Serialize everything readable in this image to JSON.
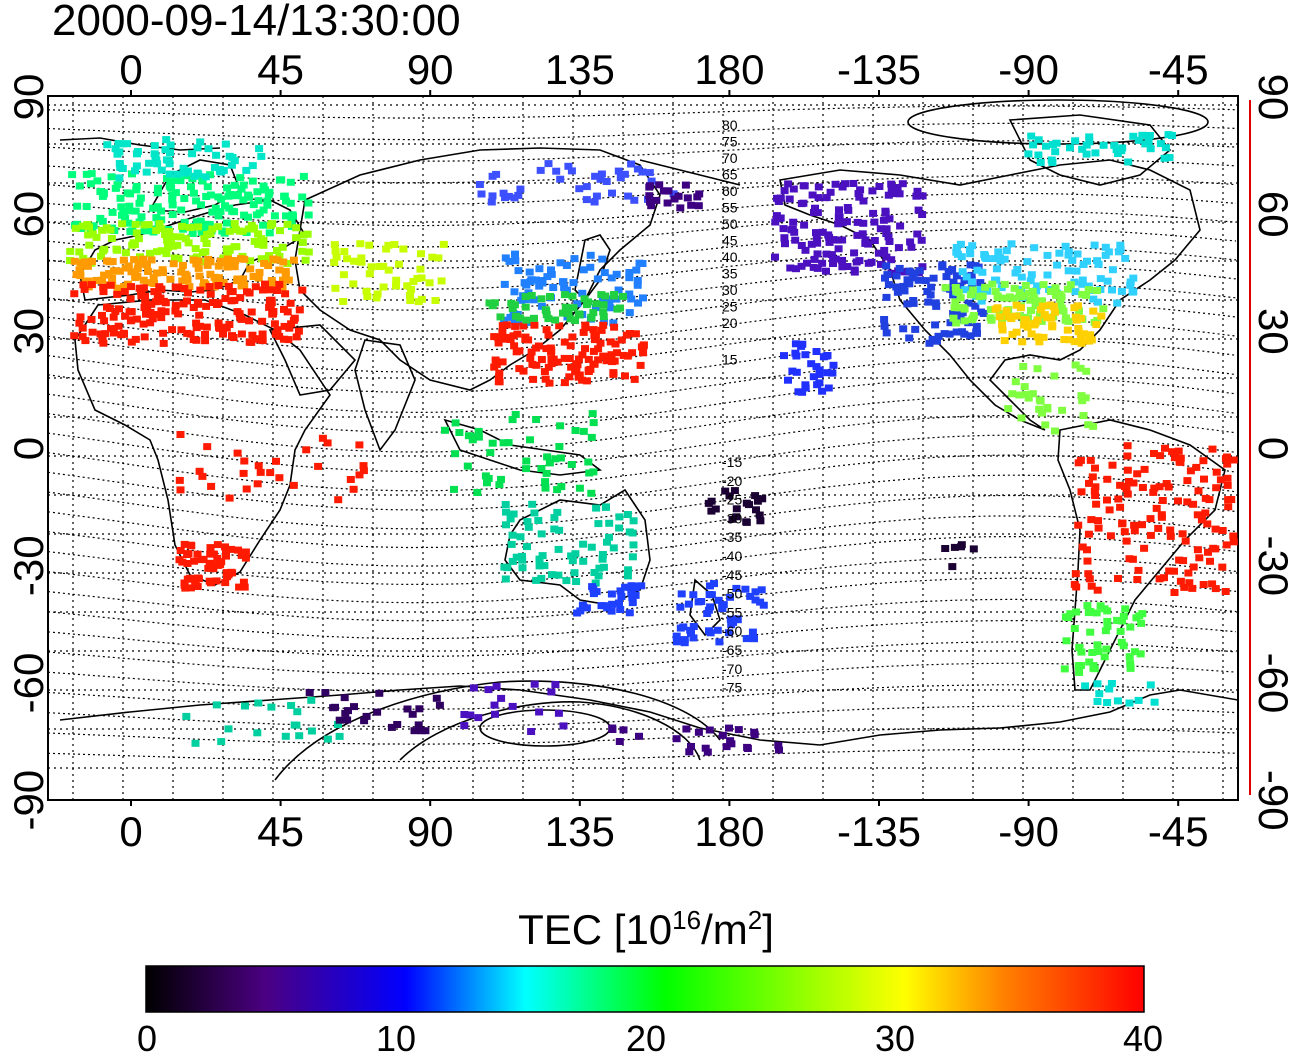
{
  "timestamp": "2000-09-14/13:30:00",
  "map": {
    "lon_ticks_top": [
      "0",
      "45",
      "90",
      "135",
      "180",
      "-135",
      "-90",
      "-45"
    ],
    "lon_ticks_bottom": [
      "0",
      "45",
      "90",
      "135",
      "180",
      "-135",
      "-90",
      "-45"
    ],
    "lat_ticks_left": [
      "90",
      "60",
      "30",
      "0",
      "-30",
      "-60",
      "-90"
    ],
    "lat_ticks_right": [
      "90",
      "60",
      "30",
      "0",
      "-30",
      "-60",
      "-90"
    ],
    "contour_labels": [
      "80",
      "75",
      "70",
      "65",
      "60",
      "55",
      "50",
      "45",
      "40",
      "35",
      "30",
      "25",
      "20",
      "15",
      "-15",
      "-20",
      "-25",
      "-30",
      "-35",
      "-40",
      "-45",
      "-50",
      "-55",
      "-60",
      "-65",
      "-70",
      "-75"
    ]
  },
  "colorbar": {
    "title_prefix": "TEC  [10",
    "title_exp1": "16",
    "title_mid": "/m",
    "title_exp2": "2",
    "title_suffix": "]",
    "tick_labels": [
      "0",
      "10",
      "20",
      "30",
      "40"
    ],
    "range": [
      0,
      40
    ],
    "stops": [
      "#000000",
      "#4b0082",
      "#0000ff",
      "#00ffff",
      "#00ff00",
      "#ffff00",
      "#ff8000",
      "#ff0000"
    ]
  }
}
